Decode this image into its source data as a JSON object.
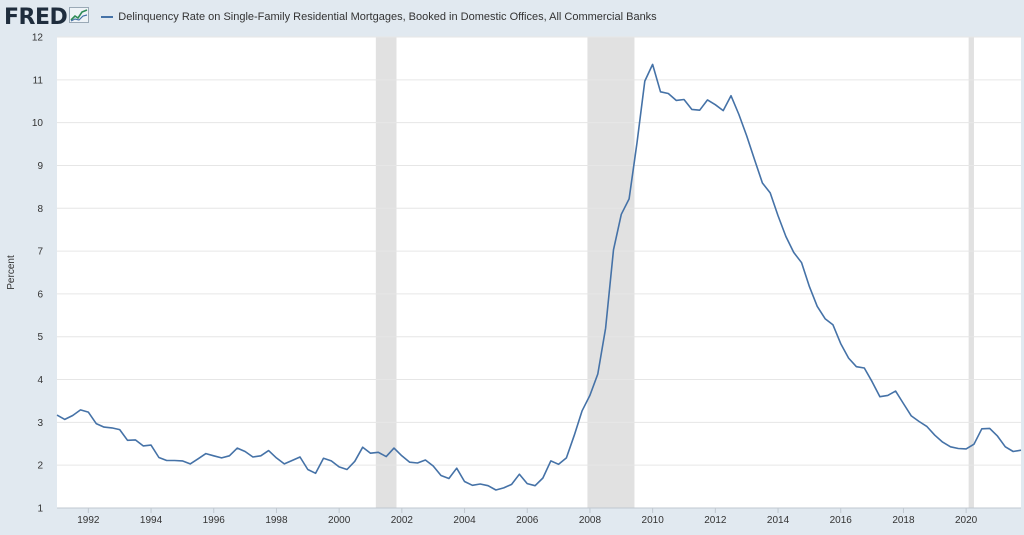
{
  "header": {
    "logo_text": "FRED",
    "logo_icon": "fred-graph-icon",
    "legend_label": "Delinquency Rate on Single-Family Residential Mortgages, Booked in Domestic Offices, All Commercial Banks"
  },
  "colors": {
    "line": "#4572a7",
    "recession": "#e1e1e1",
    "plot_bg": "#ffffff",
    "page_bg": "#e1e9f0",
    "grid": "#e6e6e6"
  },
  "chart_data": {
    "type": "line",
    "title": "",
    "xlabel": "",
    "ylabel": "Percent",
    "xlim": [
      1991.0,
      2021.75
    ],
    "ylim": [
      1,
      12
    ],
    "yticks": [
      1,
      2,
      3,
      4,
      5,
      6,
      7,
      8,
      9,
      10,
      11,
      12
    ],
    "xticks": [
      1992,
      1994,
      1996,
      1998,
      2000,
      2002,
      2004,
      2006,
      2008,
      2010,
      2012,
      2014,
      2016,
      2018,
      2020
    ],
    "grid": "horizontal",
    "recessions": [
      [
        2001.17,
        2001.83
      ],
      [
        2007.92,
        2009.42
      ],
      [
        2020.08,
        2020.25
      ]
    ],
    "series": [
      {
        "values": [
          [
            1991.0,
            3.17
          ],
          [
            1991.25,
            3.07
          ],
          [
            1991.5,
            3.16
          ],
          [
            1991.75,
            3.29
          ],
          [
            1992.0,
            3.24
          ],
          [
            1992.25,
            2.97
          ],
          [
            1992.5,
            2.89
          ],
          [
            1992.75,
            2.87
          ],
          [
            1993.0,
            2.83
          ],
          [
            1993.25,
            2.58
          ],
          [
            1993.5,
            2.59
          ],
          [
            1993.75,
            2.45
          ],
          [
            1994.0,
            2.47
          ],
          [
            1994.25,
            2.18
          ],
          [
            1994.5,
            2.11
          ],
          [
            1994.75,
            2.11
          ],
          [
            1995.0,
            2.1
          ],
          [
            1995.25,
            2.03
          ],
          [
            1995.5,
            2.15
          ],
          [
            1995.75,
            2.27
          ],
          [
            1996.0,
            2.22
          ],
          [
            1996.25,
            2.17
          ],
          [
            1996.5,
            2.22
          ],
          [
            1996.75,
            2.4
          ],
          [
            1997.0,
            2.32
          ],
          [
            1997.25,
            2.19
          ],
          [
            1997.5,
            2.22
          ],
          [
            1997.75,
            2.34
          ],
          [
            1998.0,
            2.17
          ],
          [
            1998.25,
            2.03
          ],
          [
            1998.5,
            2.11
          ],
          [
            1998.75,
            2.19
          ],
          [
            1999.0,
            1.9
          ],
          [
            1999.25,
            1.81
          ],
          [
            1999.5,
            2.16
          ],
          [
            1999.75,
            2.1
          ],
          [
            2000.0,
            1.96
          ],
          [
            2000.25,
            1.9
          ],
          [
            2000.5,
            2.09
          ],
          [
            2000.75,
            2.42
          ],
          [
            2001.0,
            2.28
          ],
          [
            2001.25,
            2.3
          ],
          [
            2001.5,
            2.2
          ],
          [
            2001.75,
            2.4
          ],
          [
            2002.0,
            2.22
          ],
          [
            2002.25,
            2.07
          ],
          [
            2002.5,
            2.05
          ],
          [
            2002.75,
            2.12
          ],
          [
            2003.0,
            1.98
          ],
          [
            2003.25,
            1.76
          ],
          [
            2003.5,
            1.69
          ],
          [
            2003.75,
            1.93
          ],
          [
            2004.0,
            1.62
          ],
          [
            2004.25,
            1.53
          ],
          [
            2004.5,
            1.56
          ],
          [
            2004.75,
            1.52
          ],
          [
            2005.0,
            1.42
          ],
          [
            2005.25,
            1.47
          ],
          [
            2005.5,
            1.55
          ],
          [
            2005.75,
            1.79
          ],
          [
            2006.0,
            1.57
          ],
          [
            2006.25,
            1.52
          ],
          [
            2006.5,
            1.7
          ],
          [
            2006.75,
            2.1
          ],
          [
            2007.0,
            2.02
          ],
          [
            2007.25,
            2.17
          ],
          [
            2007.5,
            2.7
          ],
          [
            2007.75,
            3.27
          ],
          [
            2008.0,
            3.63
          ],
          [
            2008.25,
            4.13
          ],
          [
            2008.5,
            5.2
          ],
          [
            2008.75,
            7.03
          ],
          [
            2009.0,
            7.86
          ],
          [
            2009.25,
            8.22
          ],
          [
            2009.5,
            9.53
          ],
          [
            2009.75,
            10.97
          ],
          [
            2010.0,
            11.36
          ],
          [
            2010.25,
            10.72
          ],
          [
            2010.5,
            10.68
          ],
          [
            2010.75,
            10.52
          ],
          [
            2011.0,
            10.54
          ],
          [
            2011.25,
            10.31
          ],
          [
            2011.5,
            10.29
          ],
          [
            2011.75,
            10.53
          ],
          [
            2012.0,
            10.42
          ],
          [
            2012.25,
            10.28
          ],
          [
            2012.5,
            10.63
          ],
          [
            2012.75,
            10.19
          ],
          [
            2013.0,
            9.69
          ],
          [
            2013.25,
            9.14
          ],
          [
            2013.5,
            8.59
          ],
          [
            2013.75,
            8.36
          ],
          [
            2014.0,
            7.83
          ],
          [
            2014.25,
            7.34
          ],
          [
            2014.5,
            6.97
          ],
          [
            2014.75,
            6.73
          ],
          [
            2015.0,
            6.17
          ],
          [
            2015.25,
            5.71
          ],
          [
            2015.5,
            5.42
          ],
          [
            2015.75,
            5.28
          ],
          [
            2016.0,
            4.84
          ],
          [
            2016.25,
            4.5
          ],
          [
            2016.5,
            4.3
          ],
          [
            2016.75,
            4.27
          ],
          [
            2017.0,
            3.95
          ],
          [
            2017.25,
            3.6
          ],
          [
            2017.5,
            3.63
          ],
          [
            2017.75,
            3.73
          ],
          [
            2018.0,
            3.44
          ],
          [
            2018.25,
            3.15
          ],
          [
            2018.5,
            3.02
          ],
          [
            2018.75,
            2.9
          ],
          [
            2019.0,
            2.7
          ],
          [
            2019.25,
            2.54
          ],
          [
            2019.5,
            2.43
          ],
          [
            2019.75,
            2.39
          ],
          [
            2020.0,
            2.38
          ],
          [
            2020.25,
            2.49
          ],
          [
            2020.5,
            2.85
          ],
          [
            2020.75,
            2.86
          ],
          [
            2021.0,
            2.68
          ],
          [
            2021.25,
            2.43
          ],
          [
            2021.5,
            2.32
          ],
          [
            2021.75,
            2.35
          ]
        ]
      }
    ]
  }
}
